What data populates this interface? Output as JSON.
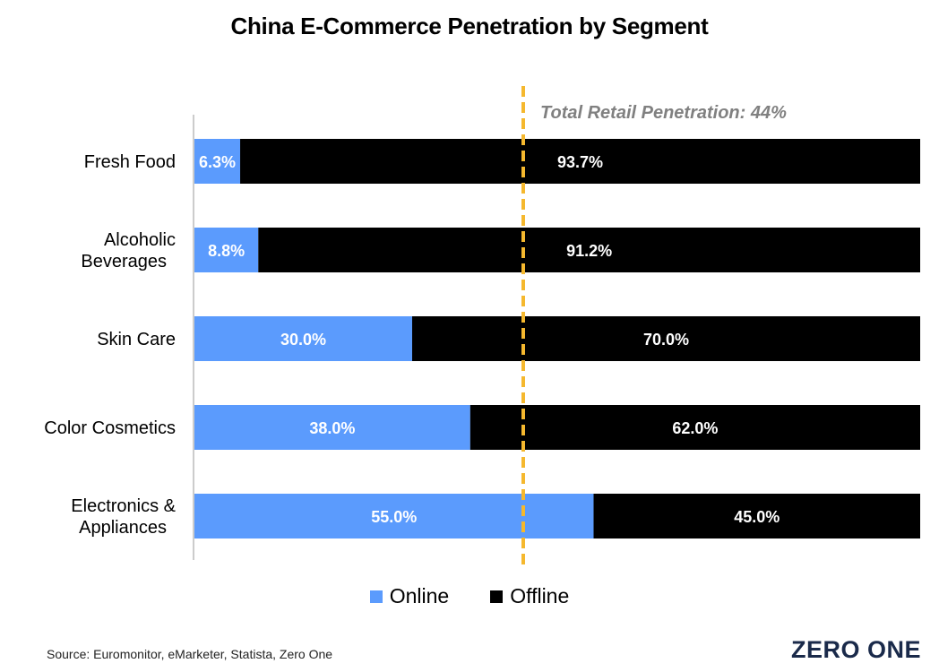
{
  "colors": {
    "online": "#5b9bfd",
    "offline": "#000000",
    "reference_line": "#f5b82e",
    "reference_label": "#808080",
    "axis": "#cccccc"
  },
  "chart_data": {
    "type": "bar",
    "orientation": "horizontal",
    "stacked": true,
    "title": "China E-Commerce Penetration by Segment",
    "categories": [
      "Fresh Food",
      "Alcoholic Beverages",
      "Skin Care",
      "Color Cosmetics",
      "Electronics & Appliances"
    ],
    "category_lines": [
      [
        "Fresh Food"
      ],
      [
        "Alcoholic",
        "Beverages"
      ],
      [
        "Skin Care"
      ],
      [
        "Color Cosmetics"
      ],
      [
        "Electronics &",
        "Appliances"
      ]
    ],
    "series": [
      {
        "name": "Online",
        "values": [
          6.3,
          8.8,
          30.0,
          38.0,
          55.0
        ],
        "labels": [
          "6.3%",
          "8.8%",
          "30.0%",
          "38.0%",
          "55.0%"
        ]
      },
      {
        "name": "Offline",
        "values": [
          93.7,
          91.2,
          70.0,
          62.0,
          45.0
        ],
        "labels": [
          "93.7%",
          "91.2%",
          "70.0%",
          "62.0%",
          "45.0%"
        ]
      }
    ],
    "xlim": [
      0,
      100
    ],
    "reference_line": {
      "value": 44,
      "label": "Total Retail Penetration: 44%"
    },
    "legend_position": "bottom",
    "grid": false
  },
  "legend": {
    "online": "Online",
    "offline": "Offline"
  },
  "footer": {
    "source": "Source: Euromonitor, eMarketer, Statista, Zero One",
    "logo_text": "ZERO ONE"
  }
}
